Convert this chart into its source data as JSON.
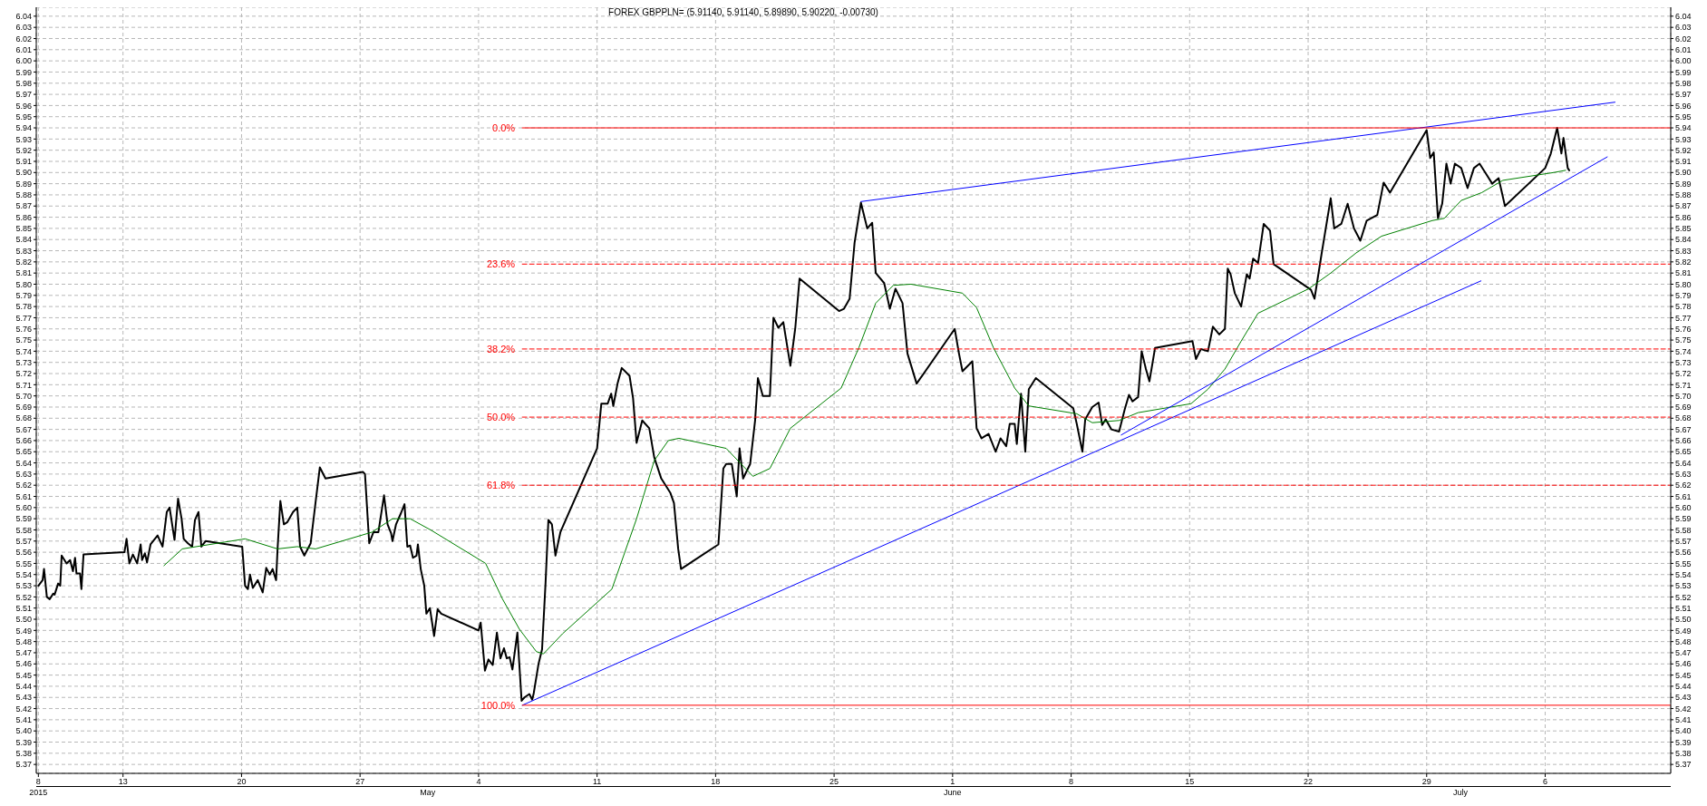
{
  "chart_data": {
    "type": "line",
    "title": "FOREX GBPPLN= (5.91140, 5.91140, 5.89890, 5.90220, -0.00730)",
    "xlim": [
      "2015-04-07T21:00",
      "2015-07-13T10:00"
    ],
    "xticks": [
      {
        "value": "2015-04-08",
        "label": "8"
      },
      {
        "value": "2015-04-13",
        "label": "13"
      },
      {
        "value": "2015-04-20",
        "label": "20"
      },
      {
        "value": "2015-04-27",
        "label": "27"
      },
      {
        "value": "2015-05-04",
        "label": "4"
      },
      {
        "value": "2015-05-11",
        "label": "11"
      },
      {
        "value": "2015-05-18",
        "label": "18"
      },
      {
        "value": "2015-05-25",
        "label": "25"
      },
      {
        "value": "2015-06-01",
        "label": "1"
      },
      {
        "value": "2015-06-08",
        "label": "8"
      },
      {
        "value": "2015-06-15",
        "label": "15"
      },
      {
        "value": "2015-06-22",
        "label": "22"
      },
      {
        "value": "2015-06-29",
        "label": "29"
      },
      {
        "value": "2015-07-06",
        "label": "6"
      }
    ],
    "x2lim": [
      "2015-04-07T21:00",
      "2015-07-13T10:00"
    ],
    "x2ticks": [
      {
        "value": "2015-04-08",
        "label": "2015"
      },
      {
        "value": "2015-05-01",
        "label": "May"
      },
      {
        "value": "2015-06-01",
        "label": "June"
      },
      {
        "value": "2015-07-01",
        "label": "July"
      }
    ],
    "ylim": [
      5.362,
      6.048
    ],
    "yticks": [
      5.37,
      5.38,
      5.39,
      {
        "value": 5.4,
        "label": "5.40"
      },
      5.41,
      5.42,
      5.43,
      5.44,
      5.45,
      5.46,
      5.47,
      5.48,
      5.49,
      {
        "value": 5.5,
        "label": "5.50"
      },
      5.51,
      5.52,
      5.53,
      5.54,
      5.55,
      5.56,
      5.57,
      5.58,
      5.59,
      {
        "value": 5.6,
        "label": "5.60"
      },
      5.61,
      5.62,
      5.63,
      5.64,
      5.65,
      5.66,
      5.67,
      5.68,
      5.69,
      {
        "value": 5.7,
        "label": "5.70"
      },
      5.71,
      5.72,
      5.73,
      5.74,
      5.75,
      5.76,
      5.77,
      5.78,
      5.79,
      {
        "value": 5.8,
        "label": "5.80"
      },
      5.81,
      5.82,
      5.83,
      5.84,
      5.85,
      5.86,
      5.87,
      5.88,
      5.89,
      {
        "value": 5.9,
        "label": "5.90"
      },
      5.91,
      5.92,
      5.93,
      5.94,
      5.95,
      5.96,
      5.97,
      5.98,
      5.99,
      {
        "value": 6,
        "label": "6.00"
      },
      6.01,
      6.02,
      6.03,
      6.04
    ],
    "y2lim": [
      5.362,
      6.048
    ],
    "y2ticks": [
      5.37,
      5.38,
      5.39,
      {
        "value": 5.4,
        "label": "5.40"
      },
      5.41,
      5.42,
      5.43,
      5.44,
      5.45,
      5.46,
      5.47,
      5.48,
      5.49,
      {
        "value": 5.5,
        "label": "5.50"
      },
      5.51,
      5.52,
      5.53,
      5.54,
      5.55,
      5.56,
      5.57,
      5.58,
      5.59,
      {
        "value": 5.6,
        "label": "5.60"
      },
      5.61,
      5.62,
      5.63,
      5.64,
      5.65,
      5.66,
      5.67,
      5.68,
      5.69,
      {
        "value": 5.7,
        "label": "5.70"
      },
      5.71,
      5.72,
      5.73,
      5.74,
      5.75,
      5.76,
      5.77,
      5.78,
      5.79,
      {
        "value": 5.8,
        "label": "5.80"
      },
      5.81,
      5.82,
      5.83,
      5.84,
      5.85,
      5.86,
      5.87,
      5.88,
      5.89,
      {
        "value": 5.9,
        "label": "5.90"
      },
      5.91,
      5.92,
      5.93,
      5.94,
      5.95,
      5.96,
      5.97,
      5.98,
      5.99,
      {
        "value": 6,
        "label": "6.00"
      },
      6.01,
      6.02,
      6.03,
      6.04
    ],
    "grid": true,
    "series": [
      {
        "color": "#000000",
        "x": [
          "2015-04-08T00:00",
          "2015-04-08T06:00",
          "2015-04-08T08:00",
          "2015-04-08T12:00",
          "2015-04-08T16:00",
          "2015-04-08T21:00",
          "2015-04-08T23:00",
          "2015-04-09T04:00",
          "2015-04-09T07:00",
          "2015-04-09T09:00",
          "2015-04-09T16:00",
          "2015-04-09T21:00",
          "2015-04-10T01:00",
          "2015-04-10T04:00",
          "2015-04-10T06:00",
          "2015-04-10T11:00",
          "2015-04-10T13:00",
          "2015-04-10T16:00",
          "2015-04-13T02:00",
          "2015-04-13T05:00",
          "2015-04-13T09:00",
          "2015-04-13T14:00",
          "2015-04-13T20:00",
          "2015-04-14T01:00",
          "2015-04-14T03:00",
          "2015-04-14T07:00",
          "2015-04-14T10:00",
          "2015-04-14T15:00",
          "2015-04-15T01:00",
          "2015-04-15T08:00",
          "2015-04-15T14:00",
          "2015-04-15T18:00",
          "2015-04-16T01:00",
          "2015-04-16T06:00",
          "2015-04-16T11:00",
          "2015-04-16T14:00",
          "2015-04-16T20:00",
          "2015-04-17T02:00",
          "2015-04-17T06:00",
          "2015-04-17T11:00",
          "2015-04-17T15:00",
          "2015-04-17T21:00",
          "2015-04-20T01:00",
          "2015-04-20T05:00",
          "2015-04-20T09:00",
          "2015-04-20T12:00",
          "2015-04-20T16:00",
          "2015-04-20T23:00",
          "2015-04-21T06:00",
          "2015-04-21T11:00",
          "2015-04-21T16:00",
          "2015-04-21T20:00",
          "2015-04-22T01:00",
          "2015-04-22T03:00",
          "2015-04-22T07:00",
          "2015-04-22T12:00",
          "2015-04-22T17:00",
          "2015-04-23T01:00",
          "2015-04-23T07:00",
          "2015-04-23T11:00",
          "2015-04-23T17:00",
          "2015-04-24T02:00",
          "2015-04-24T09:00",
          "2015-04-24T15:00",
          "2015-04-24T23:00",
          "2015-04-27T04:00",
          "2015-04-27T07:00",
          "2015-04-27T13:00",
          "2015-04-27T19:00",
          "2015-04-28T02:00",
          "2015-04-28T10:00",
          "2015-04-28T15:00",
          "2015-04-28T20:00",
          "2015-04-28T22:00",
          "2015-04-29T03:00",
          "2015-04-29T10:00",
          "2015-04-29T15:00",
          "2015-04-29T19:00",
          "2015-04-29T23:00",
          "2015-04-30T03:00",
          "2015-04-30T08:00",
          "2015-04-30T10:00",
          "2015-04-30T14:00",
          "2015-04-30T19:00",
          "2015-04-30T22:00",
          "2015-05-01T03:00",
          "2015-05-01T09:00",
          "2015-05-01T14:00",
          "2015-05-01T19:00",
          "2015-05-04T00:00",
          "2015-05-04T03:00",
          "2015-05-04T09:00",
          "2015-05-04T14:00",
          "2015-05-04T20:00",
          "2015-05-05T02:00",
          "2015-05-05T07:00",
          "2015-05-05T12:00",
          "2015-05-05T16:00",
          "2015-05-05T20:00",
          "2015-05-06T00:00",
          "2015-05-06T07:00",
          "2015-05-06T13:00",
          "2015-05-06T17:00",
          "2015-05-07T00:00",
          "2015-05-07T04:00",
          "2015-05-07T06:00",
          "2015-05-07T13:00",
          "2015-05-07T18:00",
          "2015-05-07T23:00",
          "2015-05-08T03:00",
          "2015-05-08T08:00",
          "2015-05-08T13:00",
          "2015-05-08T20:00",
          "2015-05-11T00:00",
          "2015-05-11T06:00",
          "2015-05-11T15:00",
          "2015-05-11T20:00",
          "2015-05-11T23:00",
          "2015-05-12T05:00",
          "2015-05-12T11:00",
          "2015-05-12T22:00",
          "2015-05-13T03:00",
          "2015-05-13T08:00",
          "2015-05-13T16:00",
          "2015-05-14T02:00",
          "2015-05-14T09:00",
          "2015-05-14T19:00",
          "2015-05-15T08:00",
          "2015-05-15T13:00",
          "2015-05-15T19:00",
          "2015-05-15T23:00",
          "2015-05-18T04:00",
          "2015-05-18T11:00",
          "2015-05-18T15:00",
          "2015-05-18T23:00",
          "2015-05-19T06:00",
          "2015-05-19T10:00",
          "2015-05-19T15:00",
          "2015-05-20T01:00",
          "2015-05-20T08:00",
          "2015-05-20T12:00",
          "2015-05-20T19:00",
          "2015-05-21T05:00",
          "2015-05-21T10:00",
          "2015-05-21T17:00",
          "2015-05-22T00:00",
          "2015-05-22T10:00",
          "2015-05-22T17:00",
          "2015-05-22T23:00",
          "2015-05-25T07:00",
          "2015-05-25T14:00",
          "2015-05-25T22:00",
          "2015-05-26T05:00",
          "2015-05-26T14:00",
          "2015-05-26T23:00",
          "2015-05-27T06:00",
          "2015-05-27T11:00",
          "2015-05-27T23:00",
          "2015-05-28T07:00",
          "2015-05-28T15:00",
          "2015-05-29T01:00",
          "2015-05-29T08:00",
          "2015-05-29T21:00",
          "2015-06-01T03:00",
          "2015-06-01T09:00",
          "2015-06-01T14:00",
          "2015-06-02T04:00",
          "2015-06-02T10:00",
          "2015-06-02T17:00",
          "2015-06-03T03:00",
          "2015-06-03T13:00",
          "2015-06-03T20:00",
          "2015-06-04T04:00",
          "2015-06-04T09:00",
          "2015-06-04T16:00",
          "2015-06-04T19:00",
          "2015-06-05T01:00",
          "2015-06-05T07:00",
          "2015-06-05T12:00",
          "2015-06-05T22:00",
          "2015-06-08T03:00",
          "2015-06-08T08:00",
          "2015-06-08T16:00",
          "2015-06-08T20:00",
          "2015-06-09T06:00",
          "2015-06-09T15:00",
          "2015-06-09T20:00",
          "2015-06-10T01:00",
          "2015-06-10T09:00",
          "2015-06-10T20:00",
          "2015-06-11T04:00",
          "2015-06-11T10:00",
          "2015-06-11T15:00",
          "2015-06-11T23:00",
          "2015-06-12T04:00",
          "2015-06-12T10:00",
          "2015-06-12T15:00",
          "2015-06-12T23:00",
          "2015-06-15T04:00",
          "2015-06-15T09:00",
          "2015-06-15T16:00",
          "2015-06-16T02:00",
          "2015-06-16T09:00",
          "2015-06-16T18:00",
          "2015-06-17T02:00",
          "2015-06-17T06:00",
          "2015-06-17T10:00",
          "2015-06-17T16:00",
          "2015-06-18T01:00",
          "2015-06-18T09:00",
          "2015-06-18T13:00",
          "2015-06-18T18:00",
          "2015-06-19T01:00",
          "2015-06-19T09:00",
          "2015-06-19T18:00",
          "2015-06-19T23:00",
          "2015-06-22T04:00",
          "2015-06-22T09:00",
          "2015-06-22T19:00",
          "2015-06-23T08:00",
          "2015-06-23T13:00",
          "2015-06-23T23:00",
          "2015-06-24T08:00",
          "2015-06-24T17:00",
          "2015-06-25T02:00",
          "2015-06-25T11:00",
          "2015-06-26T02:00",
          "2015-06-26T11:00",
          "2015-06-26T20:00",
          "2015-06-29T00:00",
          "2015-06-29T05:00",
          "2015-06-29T10:00",
          "2015-06-29T16:00",
          "2015-06-29T22:00",
          "2015-06-30T04:00",
          "2015-06-30T10:00",
          "2015-06-30T16:00",
          "2015-07-01T01:00",
          "2015-07-01T10:00",
          "2015-07-01T19:00",
          "2015-07-02T03:00",
          "2015-07-02T12:00",
          "2015-07-02T21:00",
          "2015-07-03T06:00",
          "2015-07-03T15:00",
          "2015-07-06T00:00",
          "2015-07-06T08:00",
          "2015-07-06T17:00",
          "2015-07-06T23:00",
          "2015-07-07T02:00",
          "2015-07-07T08:00",
          "2015-07-07T10:00"
        ],
        "values": [
          5.53,
          5.535,
          5.545,
          5.52,
          5.518,
          5.523,
          5.522,
          5.532,
          5.53,
          5.557,
          5.55,
          5.553,
          5.543,
          5.555,
          5.541,
          5.541,
          5.527,
          5.558,
          5.56,
          5.572,
          5.55,
          5.558,
          5.55,
          5.567,
          5.553,
          5.559,
          5.551,
          5.567,
          5.575,
          5.565,
          5.596,
          5.6,
          5.571,
          5.608,
          5.59,
          5.572,
          5.568,
          5.565,
          5.589,
          5.596,
          5.565,
          5.57,
          5.565,
          5.53,
          5.527,
          5.54,
          5.528,
          5.535,
          5.524,
          5.546,
          5.54,
          5.545,
          5.535,
          5.562,
          5.606,
          5.585,
          5.587,
          5.596,
          5.6,
          5.565,
          5.557,
          5.568,
          5.605,
          5.636,
          5.626,
          5.632,
          5.63,
          5.568,
          5.578,
          5.578,
          5.611,
          5.585,
          5.577,
          5.57,
          5.585,
          5.595,
          5.603,
          5.565,
          5.566,
          5.555,
          5.557,
          5.567,
          5.545,
          5.53,
          5.505,
          5.51,
          5.485,
          5.509,
          5.505,
          5.49,
          5.497,
          5.454,
          5.464,
          5.459,
          5.488,
          5.465,
          5.474,
          5.465,
          5.466,
          5.455,
          5.488,
          5.427,
          5.43,
          5.433,
          5.428,
          5.433,
          5.46,
          5.473,
          5.533,
          5.589,
          5.585,
          5.557,
          5.578,
          5.653,
          5.693,
          5.693,
          5.702,
          5.691,
          5.711,
          5.725,
          5.718,
          5.698,
          5.658,
          5.678,
          5.671,
          5.645,
          5.626,
          5.613,
          5.604,
          5.563,
          5.545,
          5.567,
          5.635,
          5.639,
          5.639,
          5.61,
          5.653,
          5.626,
          5.639,
          5.678,
          5.716,
          5.7,
          5.7,
          5.77,
          5.761,
          5.766,
          5.727,
          5.761,
          5.805,
          5.776,
          5.778,
          5.787,
          5.837,
          5.873,
          5.85,
          5.855,
          5.81,
          5.801,
          5.778,
          5.796,
          5.783,
          5.738,
          5.711,
          5.76,
          5.738,
          5.722,
          5.731,
          5.671,
          5.662,
          5.666,
          5.65,
          5.662,
          5.655,
          5.675,
          5.675,
          5.657,
          5.702,
          5.65,
          5.706,
          5.716,
          5.689,
          5.675,
          5.65,
          5.679,
          5.69,
          5.694,
          5.674,
          5.679,
          5.67,
          5.668,
          5.688,
          5.701,
          5.695,
          5.699,
          5.74,
          5.724,
          5.713,
          5.743,
          5.749,
          5.733,
          5.742,
          5.74,
          5.762,
          5.755,
          5.76,
          5.814,
          5.809,
          5.792,
          5.78,
          5.809,
          5.805,
          5.823,
          5.819,
          5.854,
          5.848,
          5.818,
          5.795,
          5.787,
          5.827,
          5.877,
          5.85,
          5.854,
          5.872,
          5.85,
          5.839,
          5.857,
          5.862,
          5.891,
          5.882,
          5.938,
          5.913,
          5.918,
          5.859,
          5.872,
          5.908,
          5.89,
          5.908,
          5.904,
          5.886,
          5.904,
          5.908,
          5.899,
          5.89,
          5.895,
          5.87,
          5.904,
          5.917,
          5.94,
          5.917,
          5.931,
          5.904,
          5.902
        ]
      },
      {
        "color": "#008000",
        "x": [
          "2015-04-15T10:00",
          "2015-04-16T12:00",
          "2015-04-20T05:00",
          "2015-04-22T03:00",
          "2015-04-23T07:00",
          "2015-04-24T09:00",
          "2015-04-27T17:00",
          "2015-04-28T22:00",
          "2015-04-29T23:00",
          "2015-05-01T04:00",
          "2015-05-04T10:00",
          "2015-05-05T10:00",
          "2015-05-06T10:00",
          "2015-05-07T10:00",
          "2015-05-07T20:00",
          "2015-05-08T23:00",
          "2015-05-11T21:00",
          "2015-05-13T08:00",
          "2015-05-14T09:00",
          "2015-05-15T05:00",
          "2015-05-15T20:00",
          "2015-05-18T15:00",
          "2015-05-20T05:00",
          "2015-05-21T05:00",
          "2015-05-22T10:00",
          "2015-05-25T10:00",
          "2015-05-26T11:00",
          "2015-05-27T11:00",
          "2015-05-28T12:00",
          "2015-05-29T13:00",
          "2015-06-01T14:00",
          "2015-06-02T10:00",
          "2015-06-03T10:00",
          "2015-06-04T16:00",
          "2015-06-05T12:00",
          "2015-06-08T08:00",
          "2015-06-09T06:00",
          "2015-06-10T20:00",
          "2015-06-11T23:00",
          "2015-06-15T02:00",
          "2015-06-16T02:00",
          "2015-06-17T02:00",
          "2015-06-18T01:00",
          "2015-06-19T01:00",
          "2015-06-22T01:00",
          "2015-06-23T08:00",
          "2015-06-24T20:00",
          "2015-06-26T08:00",
          "2015-06-29T08:00",
          "2015-06-30T01:00",
          "2015-07-01T01:00",
          "2015-07-02T06:00",
          "2015-07-03T12:00",
          "2015-07-06T12:00",
          "2015-07-07T05:00"
        ],
        "values": [
          5.548,
          5.563,
          5.572,
          5.563,
          5.565,
          5.563,
          5.578,
          5.59,
          5.59,
          5.58,
          5.55,
          5.518,
          5.491,
          5.471,
          5.469,
          5.487,
          5.527,
          5.59,
          5.642,
          5.66,
          5.662,
          5.653,
          5.628,
          5.635,
          5.671,
          5.707,
          5.743,
          5.783,
          5.799,
          5.8,
          5.792,
          5.779,
          5.743,
          5.707,
          5.691,
          5.684,
          5.676,
          5.678,
          5.685,
          5.693,
          5.706,
          5.724,
          5.749,
          5.774,
          5.796,
          5.81,
          5.828,
          5.843,
          5.857,
          5.859,
          5.875,
          5.882,
          5.893,
          5.9,
          5.902
        ]
      },
      {
        "color": "#0000ff",
        "x": [
          "2015-05-06T14:00",
          "2015-07-02T05:00"
        ],
        "values": [
          5.423,
          5.803
        ]
      },
      {
        "color": "#0000ff",
        "x": [
          "2015-06-10T23:00",
          "2015-07-09T16:00"
        ],
        "values": [
          5.665,
          5.914
        ]
      },
      {
        "color": "#0000ff",
        "x": [
          "2015-05-26T14:00",
          "2015-07-10T03:00"
        ],
        "values": [
          5.874,
          5.963
        ]
      },
      {
        "name": "0.0%",
        "color": "#ff0000",
        "x": [
          "2015-05-06T14:00",
          "2015-07-13T10:00"
        ],
        "values": [
          5.94,
          5.94
        ]
      },
      {
        "name": "23.6%",
        "color": "#ff0000",
        "line_style": "dashed",
        "x": [
          "2015-05-06T14:00",
          "2015-07-13T10:00"
        ],
        "values": [
          5.818,
          5.818
        ]
      },
      {
        "name": "38.2%",
        "color": "#ff0000",
        "line_style": "dashed",
        "x": [
          "2015-05-06T14:00",
          "2015-07-13T10:00"
        ],
        "values": [
          5.742,
          5.742
        ]
      },
      {
        "name": "50.0%",
        "color": "#ff0000",
        "line_style": "dashed",
        "x": [
          "2015-05-06T14:00",
          "2015-07-13T10:00"
        ],
        "values": [
          5.681,
          5.681
        ]
      },
      {
        "name": "61.8%",
        "color": "#ff0000",
        "line_style": "dashed",
        "x": [
          "2015-05-06T14:00",
          "2015-07-13T10:00"
        ],
        "values": [
          5.62,
          5.62
        ]
      },
      {
        "name": "100.0%",
        "color": "#ff0000",
        "x": [
          "2015-05-06T14:00",
          "2015-07-13T10:00"
        ],
        "values": [
          5.423,
          5.423
        ]
      }
    ]
  }
}
